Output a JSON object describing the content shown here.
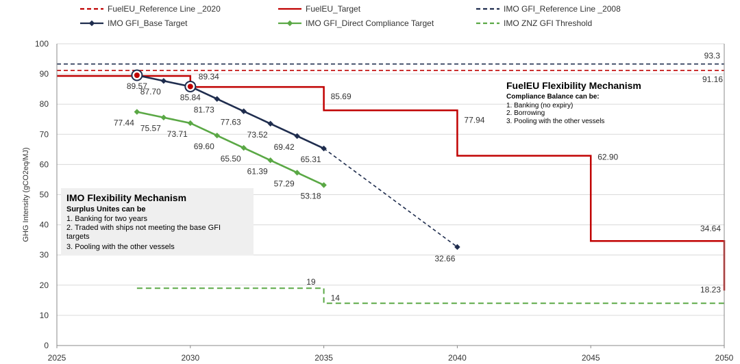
{
  "chart_data": {
    "type": "line",
    "ylabel": "GHG Intensity (gCO2eq/MJ)",
    "xlabel": "",
    "xlim": [
      2025,
      2050
    ],
    "ylim": [
      0,
      100
    ],
    "x_ticks": [
      2025,
      2030,
      2035,
      2040,
      2045,
      2050
    ],
    "y_ticks": [
      0,
      10,
      20,
      30,
      40,
      50,
      60,
      70,
      80,
      90,
      100
    ],
    "grid": "horizontal",
    "legend": [
      {
        "name": "FuelEU_Reference Line _2020",
        "color": "#c00000",
        "style": "dashed"
      },
      {
        "name": "FuelEU_Target",
        "color": "#c00000",
        "style": "solid"
      },
      {
        "name": "IMO GFI_Reference Line _2008",
        "color": "#1f2d4e",
        "style": "dashed"
      },
      {
        "name": "IMO GFI_Base Target",
        "color": "#1f2d4e",
        "style": "solid-marker"
      },
      {
        "name": "IMO GFI_Direct Compliance Target",
        "color": "#5aa845",
        "style": "solid-marker"
      },
      {
        "name": "IMO ZNZ GFI Threshold",
        "color": "#5aa845",
        "style": "dashed"
      }
    ],
    "series": [
      {
        "name": "FuelEU_Reference Line _2020",
        "kind": "hline",
        "value": 91.16,
        "label": "91.16"
      },
      {
        "name": "IMO GFI_Reference Line _2008",
        "kind": "hline",
        "value": 93.3,
        "label": "93.3"
      },
      {
        "name": "FuelEU_Target",
        "kind": "step",
        "x": [
          2025,
          2030,
          2030,
          2035,
          2035,
          2040,
          2040,
          2045,
          2045,
          2050,
          2050
        ],
        "y": [
          89.34,
          89.34,
          85.69,
          85.69,
          77.94,
          77.94,
          62.9,
          62.9,
          34.64,
          34.64,
          18.23
        ],
        "labels": [
          {
            "x": 2030,
            "y": 89.34,
            "text": "89.34"
          },
          {
            "x": 2035,
            "y": 85.69,
            "text": "85.69"
          },
          {
            "x": 2040,
            "y": 77.94,
            "text": "77.94"
          },
          {
            "x": 2045,
            "y": 62.9,
            "text": "62.90"
          },
          {
            "x": 2050,
            "y": 34.64,
            "text": "34.64"
          },
          {
            "x": 2050,
            "y": 18.23,
            "text": "18.23"
          }
        ]
      },
      {
        "name": "IMO GFI_Base Target",
        "kind": "line",
        "x": [
          2028,
          2029,
          2030,
          2031,
          2032,
          2033,
          2034,
          2035
        ],
        "y": [
          89.57,
          87.7,
          85.84,
          81.73,
          77.63,
          73.52,
          69.42,
          65.31
        ],
        "labels": [
          "89.57",
          "87.70",
          "85.84",
          "81.73",
          "77.63",
          "73.52",
          "69.42",
          "65.31"
        ]
      },
      {
        "name": "IMO GFI_Base Target extension",
        "kind": "dashed-line",
        "x": [
          2035,
          2040
        ],
        "y": [
          65.31,
          32.66
        ],
        "labels": [
          "",
          "32.66"
        ]
      },
      {
        "name": "IMO GFI_Direct Compliance Target",
        "kind": "line",
        "x": [
          2028,
          2029,
          2030,
          2031,
          2032,
          2033,
          2034,
          2035
        ],
        "y": [
          77.44,
          75.57,
          73.71,
          69.6,
          65.5,
          61.39,
          57.29,
          53.18
        ],
        "labels": [
          "77.44",
          "75.57",
          "73.71",
          "69.60",
          "65.50",
          "61.39",
          "57.29",
          "53.18"
        ]
      },
      {
        "name": "IMO ZNZ GFI Threshold",
        "kind": "step-dashed",
        "x": [
          2028,
          2035,
          2035,
          2050
        ],
        "y": [
          19,
          19,
          14,
          14
        ],
        "labels": [
          {
            "x": 2035,
            "y": 19,
            "text": "19"
          },
          {
            "x": 2035,
            "y": 14,
            "text": "14"
          }
        ]
      }
    ],
    "highlight_points": [
      {
        "x": 2028,
        "y": 89.57
      },
      {
        "x": 2030,
        "y": 85.84
      }
    ],
    "annotations": {
      "fueleu_box": {
        "title": "FuelEU Flexibility Mechanism",
        "subtitle": "Compliance Balance can be:",
        "lines": [
          "1. Banking (no expiry)",
          "2. Borrowing",
          "3. Pooling with the other vessels"
        ]
      },
      "imo_box": {
        "title": "IMO Flexibility Mechanism",
        "subtitle": "Surplus Unites can be",
        "lines": [
          "1. Banking for two years",
          "2. Traded with ships not meeting the base GFI",
          "targets",
          "3. Pooling with the other vessels"
        ]
      }
    }
  }
}
